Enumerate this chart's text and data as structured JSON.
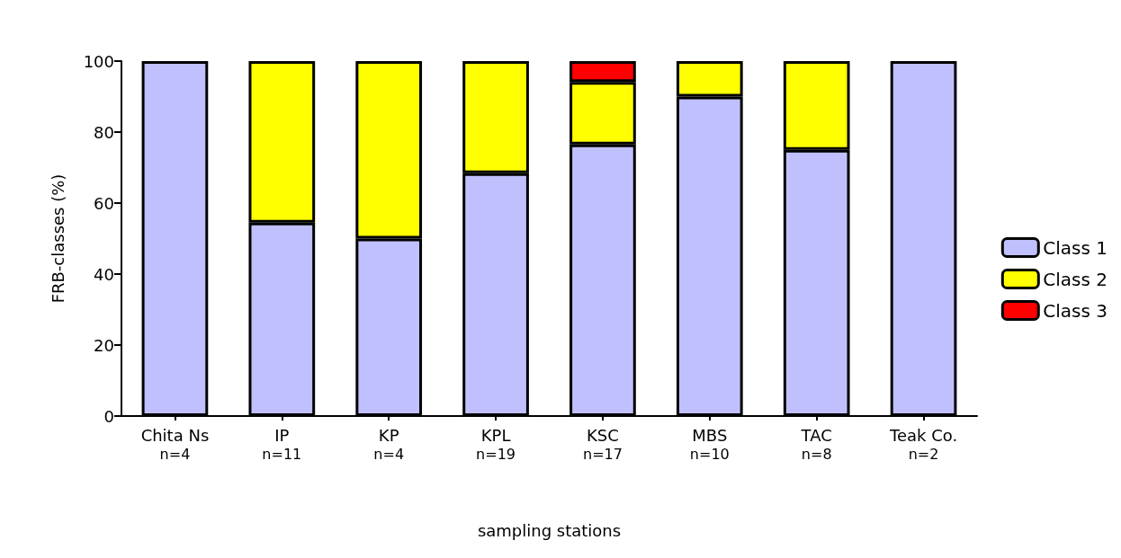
{
  "chart_data": {
    "type": "bar",
    "stacked": true,
    "xlabel": "sampling stations",
    "ylabel": "FRB-classes (%)",
    "categories": [
      "Chita Ns",
      "IP",
      "KP",
      "KPL",
      "KSC",
      "MBS",
      "TAC",
      "Teak Co."
    ],
    "series": [
      {
        "name": "Class 1",
        "color": "#c0c0ff",
        "values": [
          100,
          54.5,
          50,
          68.4,
          76.5,
          90,
          75,
          100
        ]
      },
      {
        "name": "Class 2",
        "color": "#ffff00",
        "values": [
          null,
          45.5,
          50,
          31.6,
          17.6,
          10,
          25,
          null
        ]
      },
      {
        "name": "Class 3",
        "color": "#ff0000",
        "values": [
          null,
          null,
          null,
          null,
          5.9,
          null,
          null,
          null
        ]
      }
    ],
    "ylim": [
      0,
      100
    ],
    "yticks": [
      0,
      20,
      40,
      60,
      80,
      100
    ],
    "grid": false,
    "legend": "right",
    "annotations": [
      "n=4",
      "n=11",
      "n=4",
      "n=19",
      "n=17",
      "n=10",
      "n=8",
      "n=2"
    ]
  }
}
